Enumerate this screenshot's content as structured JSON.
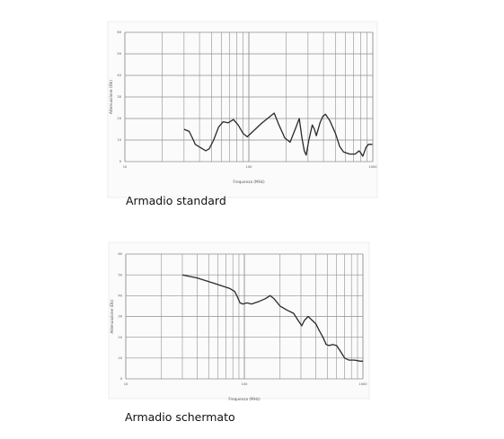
{
  "chart_data": [
    {
      "type": "line",
      "caption": "Armadio standard",
      "xlabel": "Frequenza (MHz)",
      "ylabel": "Attenuazione (Db)",
      "x_scale": "log",
      "xlim": [
        10,
        1000
      ],
      "ylim": [
        0,
        60
      ],
      "yticks": [
        0,
        10,
        20,
        30,
        40,
        50,
        60
      ],
      "xtick_labels": [
        {
          "x": 10,
          "label": "10"
        },
        {
          "x": 100,
          "label": "100"
        },
        {
          "x": 1000,
          "label": "1000"
        }
      ],
      "grid": true,
      "series": [
        {
          "points": [
            [
              30,
              15
            ],
            [
              33,
              14
            ],
            [
              35,
              11
            ],
            [
              37,
              8
            ],
            [
              42,
              6
            ],
            [
              45,
              5
            ],
            [
              48,
              6
            ],
            [
              52,
              10
            ],
            [
              57,
              16
            ],
            [
              62,
              18.5
            ],
            [
              68,
              18
            ],
            [
              75,
              19.5
            ],
            [
              82,
              17
            ],
            [
              90,
              13
            ],
            [
              97,
              11.5
            ],
            [
              108,
              14
            ],
            [
              125,
              17.5
            ],
            [
              145,
              20.5
            ],
            [
              160,
              22.5
            ],
            [
              175,
              17
            ],
            [
              195,
              11
            ],
            [
              215,
              9
            ],
            [
              240,
              16
            ],
            [
              255,
              20
            ],
            [
              268,
              11
            ],
            [
              280,
              5
            ],
            [
              290,
              3
            ],
            [
              305,
              10
            ],
            [
              325,
              17
            ],
            [
              338,
              15
            ],
            [
              350,
              12
            ],
            [
              375,
              18
            ],
            [
              395,
              21
            ],
            [
              415,
              22
            ],
            [
              450,
              19
            ],
            [
              500,
              13
            ],
            [
              540,
              7
            ],
            [
              580,
              4.5
            ],
            [
              650,
              3.5
            ],
            [
              720,
              3.5
            ],
            [
              775,
              5
            ],
            [
              800,
              4
            ],
            [
              830,
              2.5
            ],
            [
              855,
              4.5
            ],
            [
              880,
              6.5
            ],
            [
              920,
              8
            ],
            [
              990,
              8
            ]
          ]
        }
      ]
    },
    {
      "type": "line",
      "caption": "Armadio schermato",
      "xlabel": "Frequenza (MHz)",
      "ylabel": "Attenuazione (Db)",
      "x_scale": "log",
      "xlim": [
        10,
        1000
      ],
      "ylim": [
        0,
        60
      ],
      "yticks": [
        0,
        10,
        20,
        30,
        40,
        50,
        60
      ],
      "xtick_labels": [
        {
          "x": 10,
          "label": "10"
        },
        {
          "x": 100,
          "label": "100"
        },
        {
          "x": 1000,
          "label": "1000"
        }
      ],
      "grid": true,
      "series": [
        {
          "points": [
            [
              30,
              50
            ],
            [
              40,
              48.5
            ],
            [
              55,
              46
            ],
            [
              75,
              43.5
            ],
            [
              83,
              42
            ],
            [
              88,
              39
            ],
            [
              92,
              36.5
            ],
            [
              97,
              36
            ],
            [
              105,
              36.5
            ],
            [
              115,
              36
            ],
            [
              130,
              37
            ],
            [
              150,
              38.5
            ],
            [
              165,
              40
            ],
            [
              178,
              38.5
            ],
            [
              200,
              35
            ],
            [
              230,
              33
            ],
            [
              260,
              31.5
            ],
            [
              285,
              28
            ],
            [
              305,
              25.5
            ],
            [
              320,
              28
            ],
            [
              345,
              30
            ],
            [
              375,
              28
            ],
            [
              400,
              26.5
            ],
            [
              430,
              23
            ],
            [
              460,
              20
            ],
            [
              490,
              16.5
            ],
            [
              520,
              16
            ],
            [
              555,
              16.5
            ],
            [
              600,
              16
            ],
            [
              650,
              13
            ],
            [
              700,
              10
            ],
            [
              760,
              9
            ],
            [
              850,
              9
            ],
            [
              950,
              8.5
            ],
            [
              1000,
              8.5
            ]
          ]
        }
      ]
    }
  ]
}
